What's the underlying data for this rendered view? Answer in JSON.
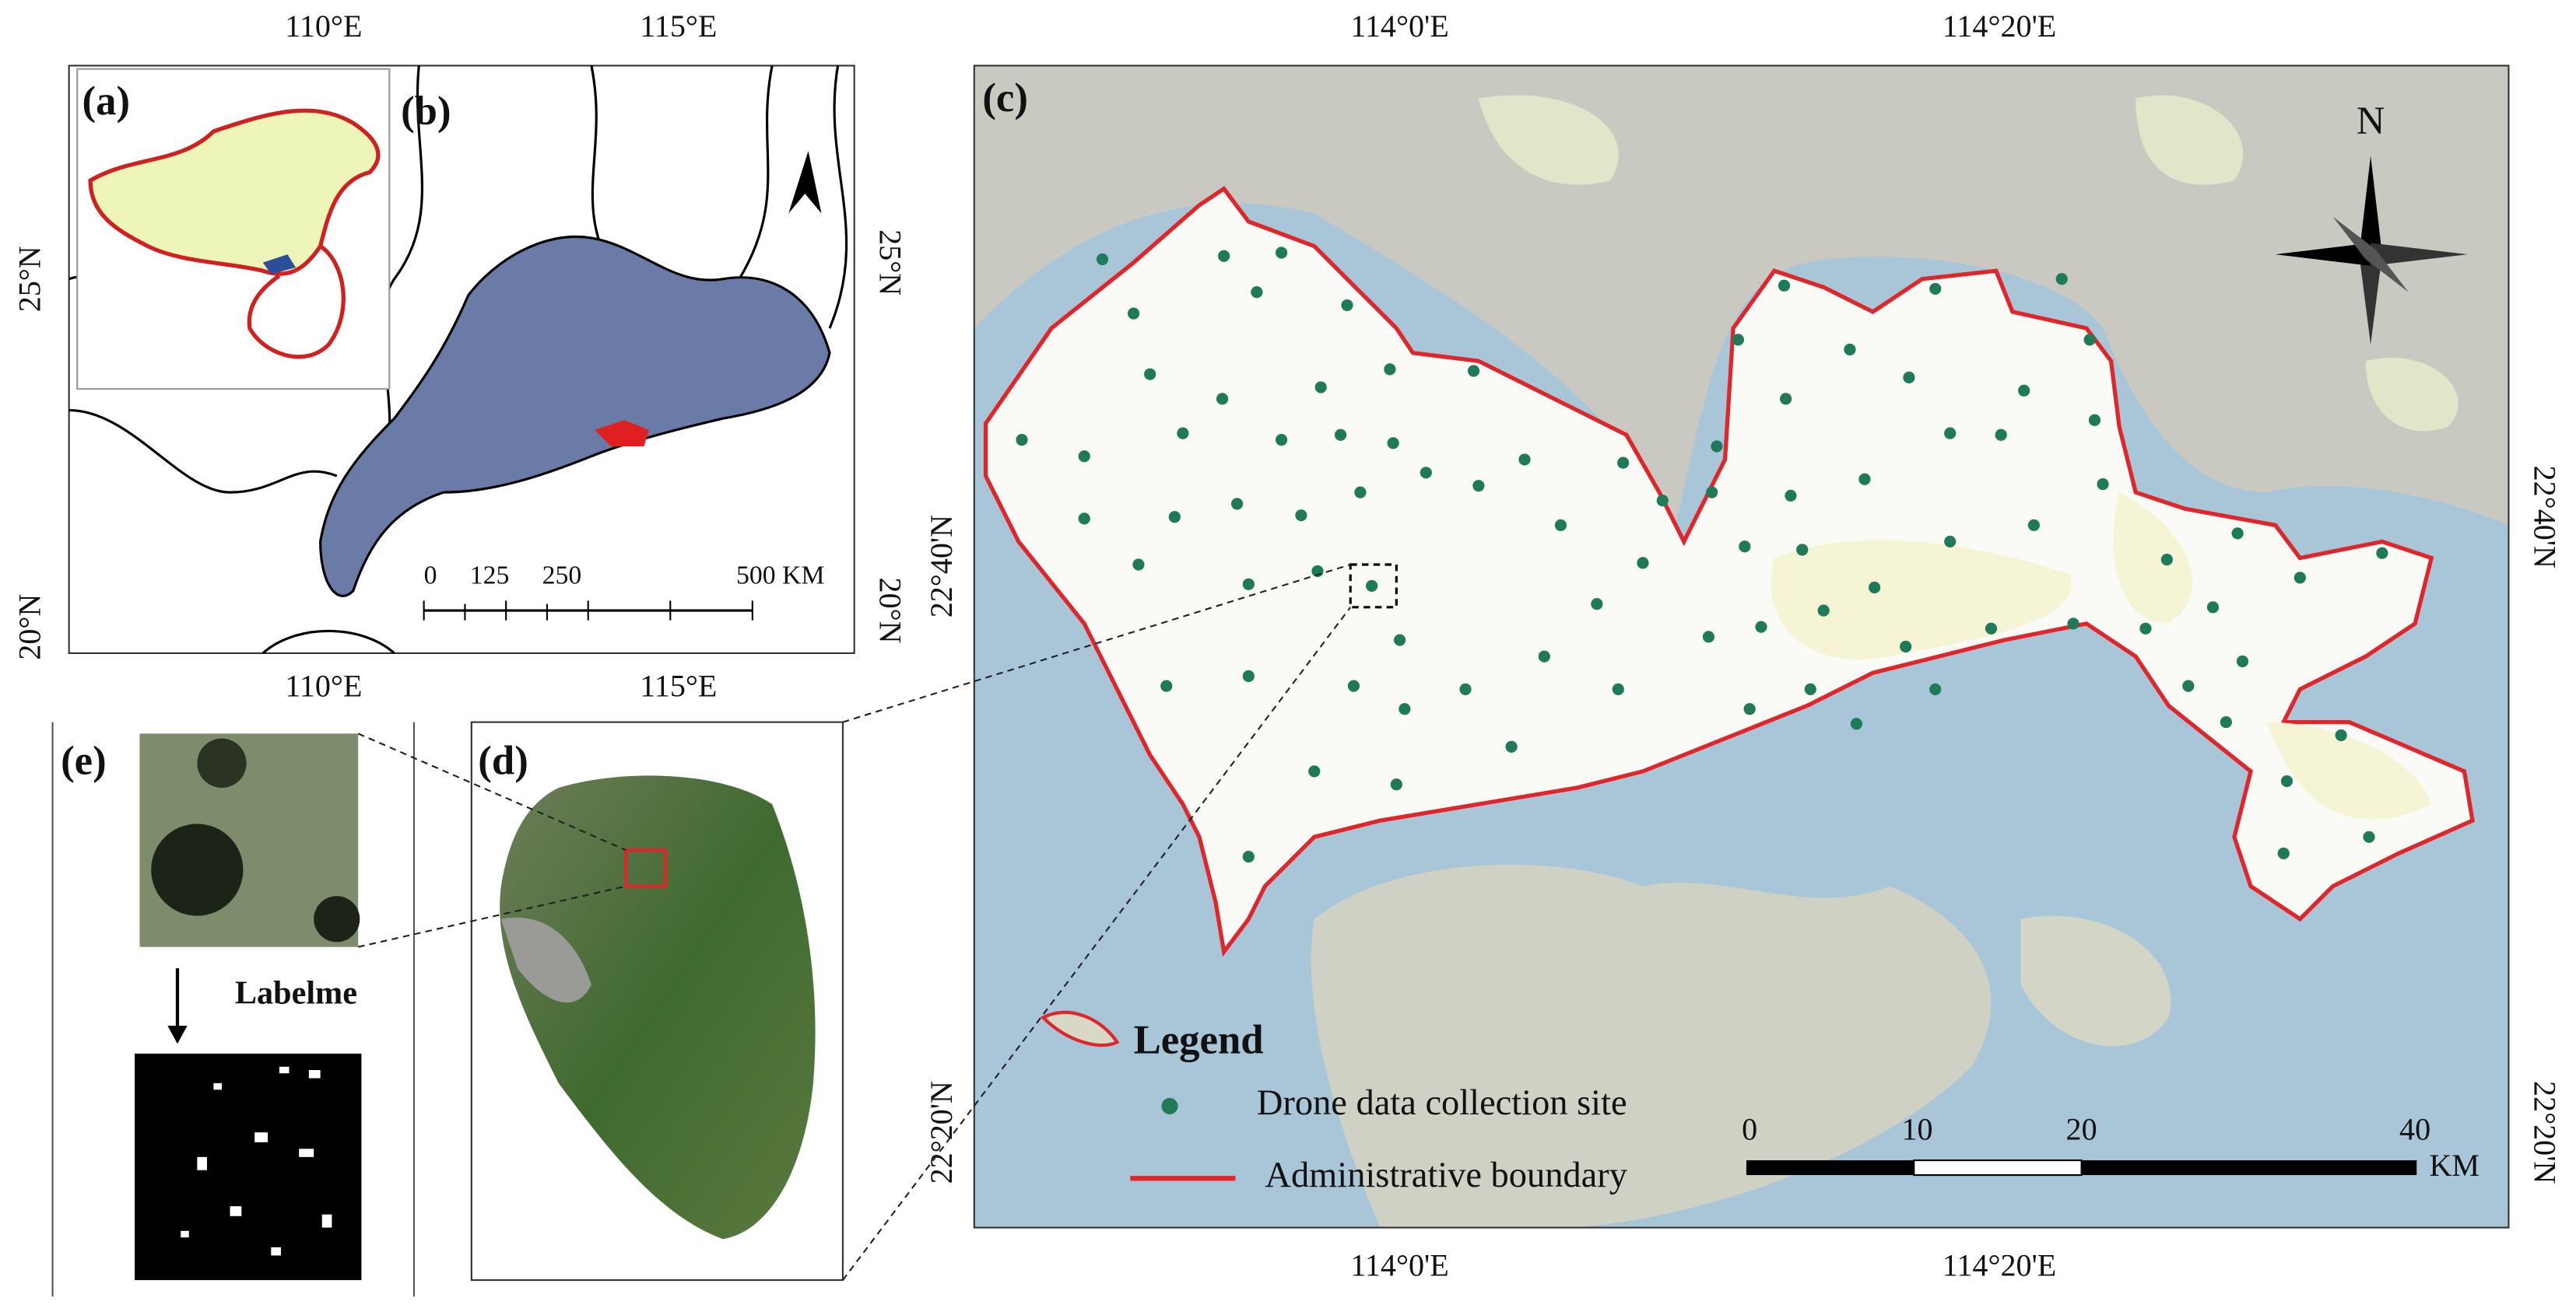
{
  "panels": {
    "a": "(a)",
    "b": "(b)",
    "c": "(c)",
    "d": "(d)",
    "e": "(e)"
  },
  "panel_b": {
    "top_labels": [
      "110°E",
      "115°E"
    ],
    "bottom_labels": [
      "110°E",
      "115°E"
    ],
    "left_labels": [
      "25°N",
      "20°N"
    ],
    "right_labels": [
      "25°N",
      "20°N"
    ],
    "scale_labels": [
      "0",
      "125",
      "250",
      "500 KM"
    ]
  },
  "panel_c": {
    "top_labels": [
      "114°0'E",
      "114°20'E"
    ],
    "bottom_labels": [
      "114°0'E",
      "114°20'E"
    ],
    "left_labels": [
      "22°40'N",
      "22°20'N"
    ],
    "right_labels": [
      "22°40'N",
      "22°20'N"
    ],
    "north": "N",
    "legend": {
      "title": "Legend",
      "items": [
        "Drone data collection site",
        "Administrative boundary"
      ]
    },
    "scale_labels": [
      "0",
      "10",
      "20",
      "40"
    ],
    "scale_unit": "KM"
  },
  "panel_e": {
    "arrow_label": "Labelme"
  }
}
